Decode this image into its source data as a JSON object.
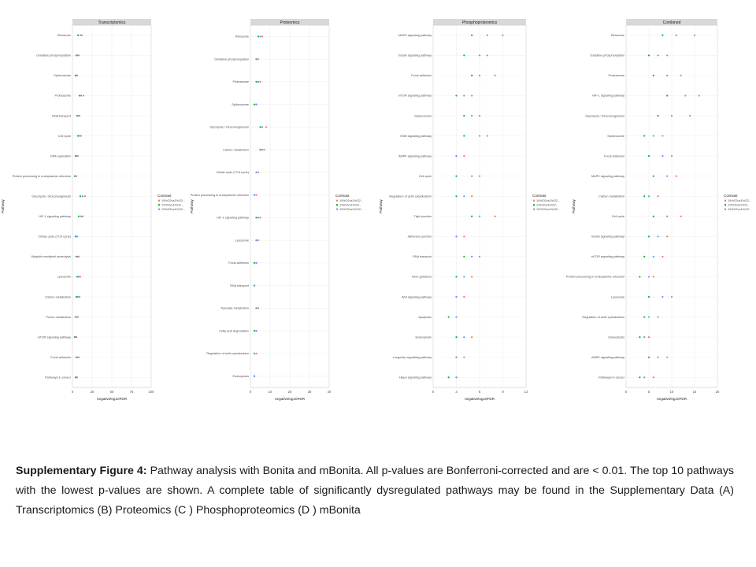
{
  "caption": {
    "label": "Supplementary Figure 4:",
    "text": "Pathway analysis with Bonita and mBonita. All p-values are Bonferroni-corrected and are < 0.01. The top 10 pathways with the lowest p-values are shown. A complete table of significantly dysregulated pathways may be found in the Supplementary Data (A) Transcriptomics (B) Proteomics (C ) Phosphoproteomics (D ) mBonita"
  },
  "colors": {
    "series": [
      "#f8766d",
      "#00ba38",
      "#619cff"
    ],
    "strip": "#d9d9d9",
    "gridline": "#ebebeb",
    "panel_border": "#c8c8c8",
    "axis_text": "#4d4d4d"
  },
  "chart_data": [
    {
      "type": "scatter",
      "title": "Transcriptomics",
      "xlabel": "negativelog10FDR",
      "ylabel": "Pathway",
      "legend_title": "Contrast",
      "legend_position": "right",
      "legend": [
        "19%O2vs1%O2...",
        "1%O2vs1%O2...",
        "19%O2vs1%O2..."
      ],
      "xlim": [
        0,
        100
      ],
      "xticks": [
        0,
        25,
        50,
        75,
        100
      ],
      "grid": true,
      "categories": [
        "Ribosome",
        "Oxidative phosphorylation",
        "Spliceosome",
        "Proteasome",
        "RNA transport",
        "Cell cycle",
        "DNA replication",
        "Protein processing in endoplasmic reticulum",
        "Glycolysis / Gluconeogenesis",
        "HIF-1 signaling pathway",
        "Citrate cycle (TCA cycle)",
        "Ubiquitin mediated proteolysis",
        "Lysosome",
        "Carbon metabolism",
        "Purine metabolism",
        "mTOR signaling pathway",
        "Focal adhesion",
        "Pathways in cancer"
      ],
      "series": [
        {
          "values": [
            12,
            8,
            6,
            14,
            9,
            11,
            7,
            5,
            16,
            13,
            6,
            8,
            10,
            9,
            7,
            5,
            8,
            6
          ]
        },
        {
          "values": [
            7,
            5,
            4,
            9,
            6,
            7,
            4,
            3,
            10,
            8,
            4,
            5,
            6,
            5,
            4,
            3,
            5,
            4
          ]
        },
        {
          "values": [
            10,
            6,
            5,
            11,
            7,
            9,
            5,
            4,
            13,
            11,
            5,
            6,
            8,
            7,
            5,
            4,
            6,
            5
          ]
        }
      ]
    },
    {
      "type": "scatter",
      "title": "Proteomics",
      "xlabel": "negativelog10FDR",
      "ylabel": "Pathway",
      "legend_title": "Contrast",
      "legend_position": "right",
      "legend": [
        "19%O2vs1%O2...",
        "1%O2vs1%O2...",
        "19%O2vs1%O2..."
      ],
      "xlim": [
        0,
        40
      ],
      "xticks": [
        0,
        10,
        20,
        30,
        40
      ],
      "grid": true,
      "categories": [
        "Ribosome",
        "Oxidative phosphorylation",
        "Proteasome",
        "Spliceosome",
        "Glycolysis / Gluconeogenesis",
        "Carbon metabolism",
        "Citrate cycle (TCA cycle)",
        "Protein processing in endoplasmic reticulum",
        "HIF-1 signaling pathway",
        "Lysosome",
        "Focal adhesion",
        "RNA transport",
        "Pyruvate metabolism",
        "Fatty acid degradation",
        "Regulation of actin cytoskeleton",
        "Endocytosis"
      ],
      "series": [
        {
          "values": [
            6,
            4,
            5,
            3,
            8,
            7,
            4,
            3,
            5,
            4,
            3,
            2,
            4,
            3,
            3,
            2
          ]
        },
        {
          "values": [
            4,
            3,
            3,
            2,
            5,
            5,
            3,
            2,
            3,
            3,
            2,
            2,
            3,
            2,
            2,
            2
          ]
        },
        {
          "values": [
            5,
            3,
            4,
            3,
            6,
            6,
            3,
            2,
            4,
            3,
            3,
            2,
            3,
            3,
            2,
            2
          ]
        }
      ]
    },
    {
      "type": "scatter",
      "title": "Phosphoproteomics",
      "xlabel": "negativelog10FDR",
      "ylabel": "Pathway",
      "legend_title": "Contrast",
      "legend_position": "right",
      "legend": [
        "19%O2vs1%O2...",
        "1%O2vs1%O2...",
        "19%O2vs1%O2..."
      ],
      "xlim": [
        0,
        12
      ],
      "xticks": [
        0,
        3,
        6,
        9,
        12
      ],
      "grid": true,
      "categories": [
        "MAPK signaling pathway",
        "Insulin signaling pathway",
        "Focal adhesion",
        "mTOR signaling pathway",
        "Spliceosome",
        "ErbB signaling pathway",
        "AMPK signaling pathway",
        "Cell cycle",
        "Regulation of actin cytoskeleton",
        "Tight junction",
        "Adherens junction",
        "RNA transport",
        "Axon guidance",
        "Wnt signaling pathway",
        "Apoptosis",
        "Endocytosis",
        "Longevity regulating pathway",
        "Hippo signaling pathway"
      ],
      "series": [
        {
          "values": [
            9,
            7,
            8,
            5,
            6,
            7,
            4,
            6,
            5,
            8,
            4,
            6,
            5,
            4,
            3,
            5,
            4,
            3
          ]
        },
        {
          "values": [
            5,
            4,
            5,
            3,
            4,
            4,
            3,
            3,
            3,
            5,
            3,
            4,
            3,
            3,
            2,
            3,
            3,
            2
          ]
        },
        {
          "values": [
            7,
            6,
            6,
            4,
            5,
            6,
            3,
            5,
            4,
            6,
            3,
            5,
            4,
            3,
            3,
            4,
            3,
            3
          ]
        }
      ]
    },
    {
      "type": "scatter",
      "title": "Combined",
      "xlabel": "negativelog10FDR",
      "ylabel": "Pathway",
      "legend_title": "Contrast",
      "legend_position": "right",
      "legend": [
        "19%O2vs1%O2...",
        "1%O2vs1%O2...",
        "19%O2vs1%O2..."
      ],
      "xlim": [
        0,
        20
      ],
      "xticks": [
        0,
        5,
        10,
        15,
        20
      ],
      "grid": true,
      "categories": [
        "Ribosome",
        "Oxidative phosphorylation",
        "Proteasome",
        "HIF-1 signaling pathway",
        "Glycolysis / Gluconeogenesis",
        "Spliceosome",
        "Focal adhesion",
        "MAPK signaling pathway",
        "Carbon metabolism",
        "Cell cycle",
        "Insulin signaling pathway",
        "mTOR signaling pathway",
        "Protein processing in endoplasmic reticulum",
        "Lysosome",
        "Regulation of actin cytoskeleton",
        "Endocytosis",
        "AMPK signaling pathway",
        "Pathways in cancer"
      ],
      "series": [
        {
          "values": [
            15,
            9,
            12,
            16,
            14,
            8,
            10,
            11,
            7,
            12,
            9,
            8,
            6,
            10,
            7,
            5,
            9,
            6
          ]
        },
        {
          "values": [
            8,
            5,
            6,
            9,
            7,
            4,
            5,
            6,
            4,
            6,
            5,
            4,
            3,
            5,
            4,
            3,
            5,
            3
          ]
        },
        {
          "values": [
            11,
            7,
            9,
            13,
            10,
            6,
            8,
            9,
            5,
            9,
            7,
            6,
            5,
            8,
            5,
            4,
            7,
            4
          ]
        }
      ]
    }
  ]
}
